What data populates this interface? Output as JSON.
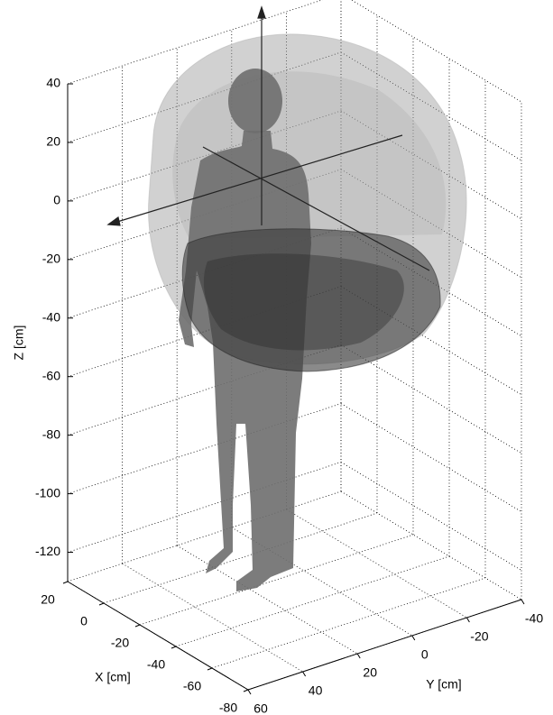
{
  "chart_data": {
    "type": "surface3d",
    "xlabel": "X [cm]",
    "ylabel": "Y [cm]",
    "zlabel": "Z [cm]",
    "xlim": [
      -80,
      20
    ],
    "ylim": [
      -40,
      60
    ],
    "zlim": [
      -130,
      40
    ],
    "xticks": [
      20,
      0,
      -20,
      -40,
      -60,
      -80
    ],
    "yticks": [
      60,
      40,
      20,
      0,
      -20,
      -40
    ],
    "zticks": [
      40,
      20,
      0,
      -20,
      -40,
      -60,
      -80,
      -100,
      -120
    ],
    "grid": true
  }
}
